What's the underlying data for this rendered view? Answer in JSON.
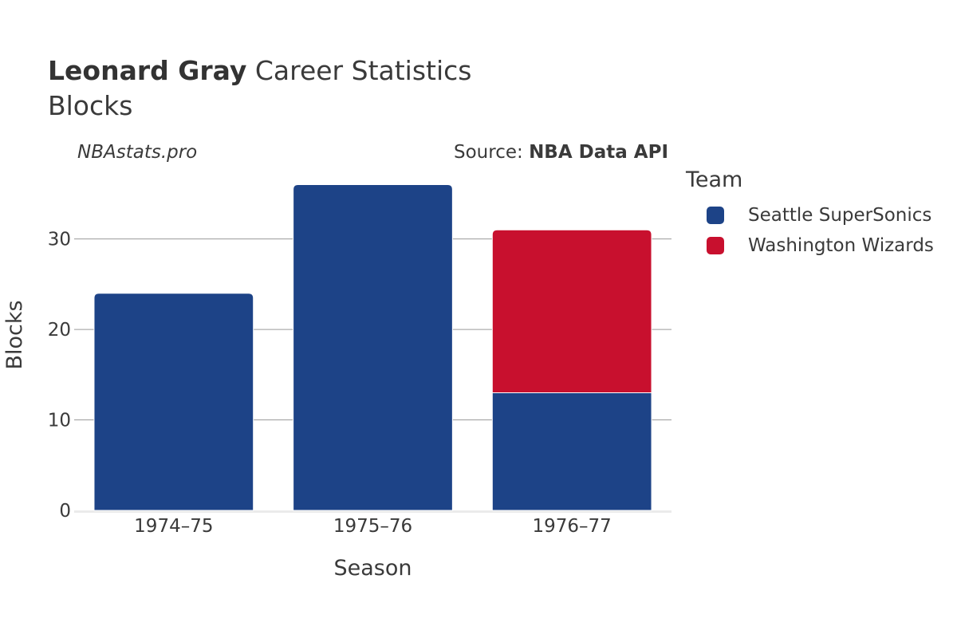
{
  "header": {
    "title_bold": "Leonard Gray",
    "title_rest": " Career Statistics",
    "subtitle": "Blocks",
    "watermark": "NBAstats.pro",
    "source_prefix": "Source: ",
    "source_bold": "NBA Data API"
  },
  "legend": {
    "title": "Team",
    "items": [
      {
        "label": "Seattle SuperSonics",
        "color": "#1d4387"
      },
      {
        "label": "Washington Wizards",
        "color": "#c8102e"
      }
    ]
  },
  "chart_data": {
    "type": "bar",
    "stacked": true,
    "categories": [
      "1974–75",
      "1975–76",
      "1976–77"
    ],
    "series": [
      {
        "name": "Seattle SuperSonics",
        "color": "#1d4387",
        "values": [
          24,
          36,
          13
        ]
      },
      {
        "name": "Washington Wizards",
        "color": "#c8102e",
        "values": [
          0,
          0,
          18
        ]
      }
    ],
    "xlabel": "Season",
    "ylabel": "Blocks",
    "ylim": [
      0,
      37.9
    ],
    "yticks": [
      0,
      10,
      20,
      30
    ],
    "grid": true,
    "legend_position": "right"
  }
}
